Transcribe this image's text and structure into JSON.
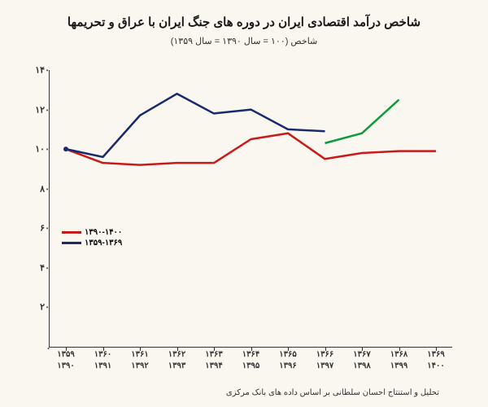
{
  "title": "شاخص درآمد اقتصادی ایران در دوره های جنگ ایران با عراق و تحریمها",
  "subtitle": "شاخص (۱۰۰ = سال ۱۳۹۰ = سال ۱۳۵۹)",
  "bottom_note": "تحلیل و استنتاج احسان سلطانی بر اساس داده های بانک مرکزی",
  "chart": {
    "type": "line",
    "background_color": "#faf6f0",
    "axis_color": "#333333",
    "ylim": [
      0,
      140
    ],
    "ytick_step": 20,
    "yticks": [
      "۱۴۰",
      "۱۲۰",
      "۱۰۰",
      "۸۰",
      "۶۰",
      "۴۰",
      "۲۰",
      "."
    ],
    "xticks_top": [
      "۱۳۵۹",
      "۱۳۶۰",
      "۱۳۶۱",
      "۱۳۶۲",
      "۱۳۶۳",
      "۱۳۶۴",
      "۱۳۶۵",
      "۱۳۶۶",
      "۱۳۶۷",
      "۱۳۶۸",
      "۱۳۶۹"
    ],
    "xticks_bottom": [
      "۱۳۹۰",
      "۱۳۹۱",
      "۱۳۹۲",
      "۱۳۹۳",
      "۱۳۹۴",
      "۱۳۹۵",
      "۱۳۹۶",
      "۱۳۹۷",
      "۱۳۹۸",
      "۱۳۹۹",
      "۱۴۰۰"
    ],
    "series": [
      {
        "name": "۱۳۵۹-۱۳۶۹",
        "color": "#1a2b6d",
        "line_width": 2.5,
        "values": [
          100,
          96,
          117,
          128,
          118,
          120,
          110,
          109,
          103,
          108,
          125
        ]
      },
      {
        "name": "۱۳۹۰-۱۴۰۰",
        "color": "#c91a1a",
        "line_width": 2.5,
        "values": [
          100,
          93,
          92,
          93,
          93,
          105,
          108,
          95,
          98,
          99,
          99
        ]
      }
    ],
    "projection_series": {
      "color": "#0a9b3a",
      "line_width": 2.5,
      "start_index": 7,
      "values": [
        103,
        108,
        125
      ]
    },
    "legend": [
      {
        "color": "#c91a1a",
        "label": "۱۳۹۰-۱۴۰۰"
      },
      {
        "color": "#1a2b6d",
        "label": "۱۳۵۹-۱۳۶۹"
      }
    ],
    "label_fontsize": 11,
    "title_fontsize": 15
  }
}
